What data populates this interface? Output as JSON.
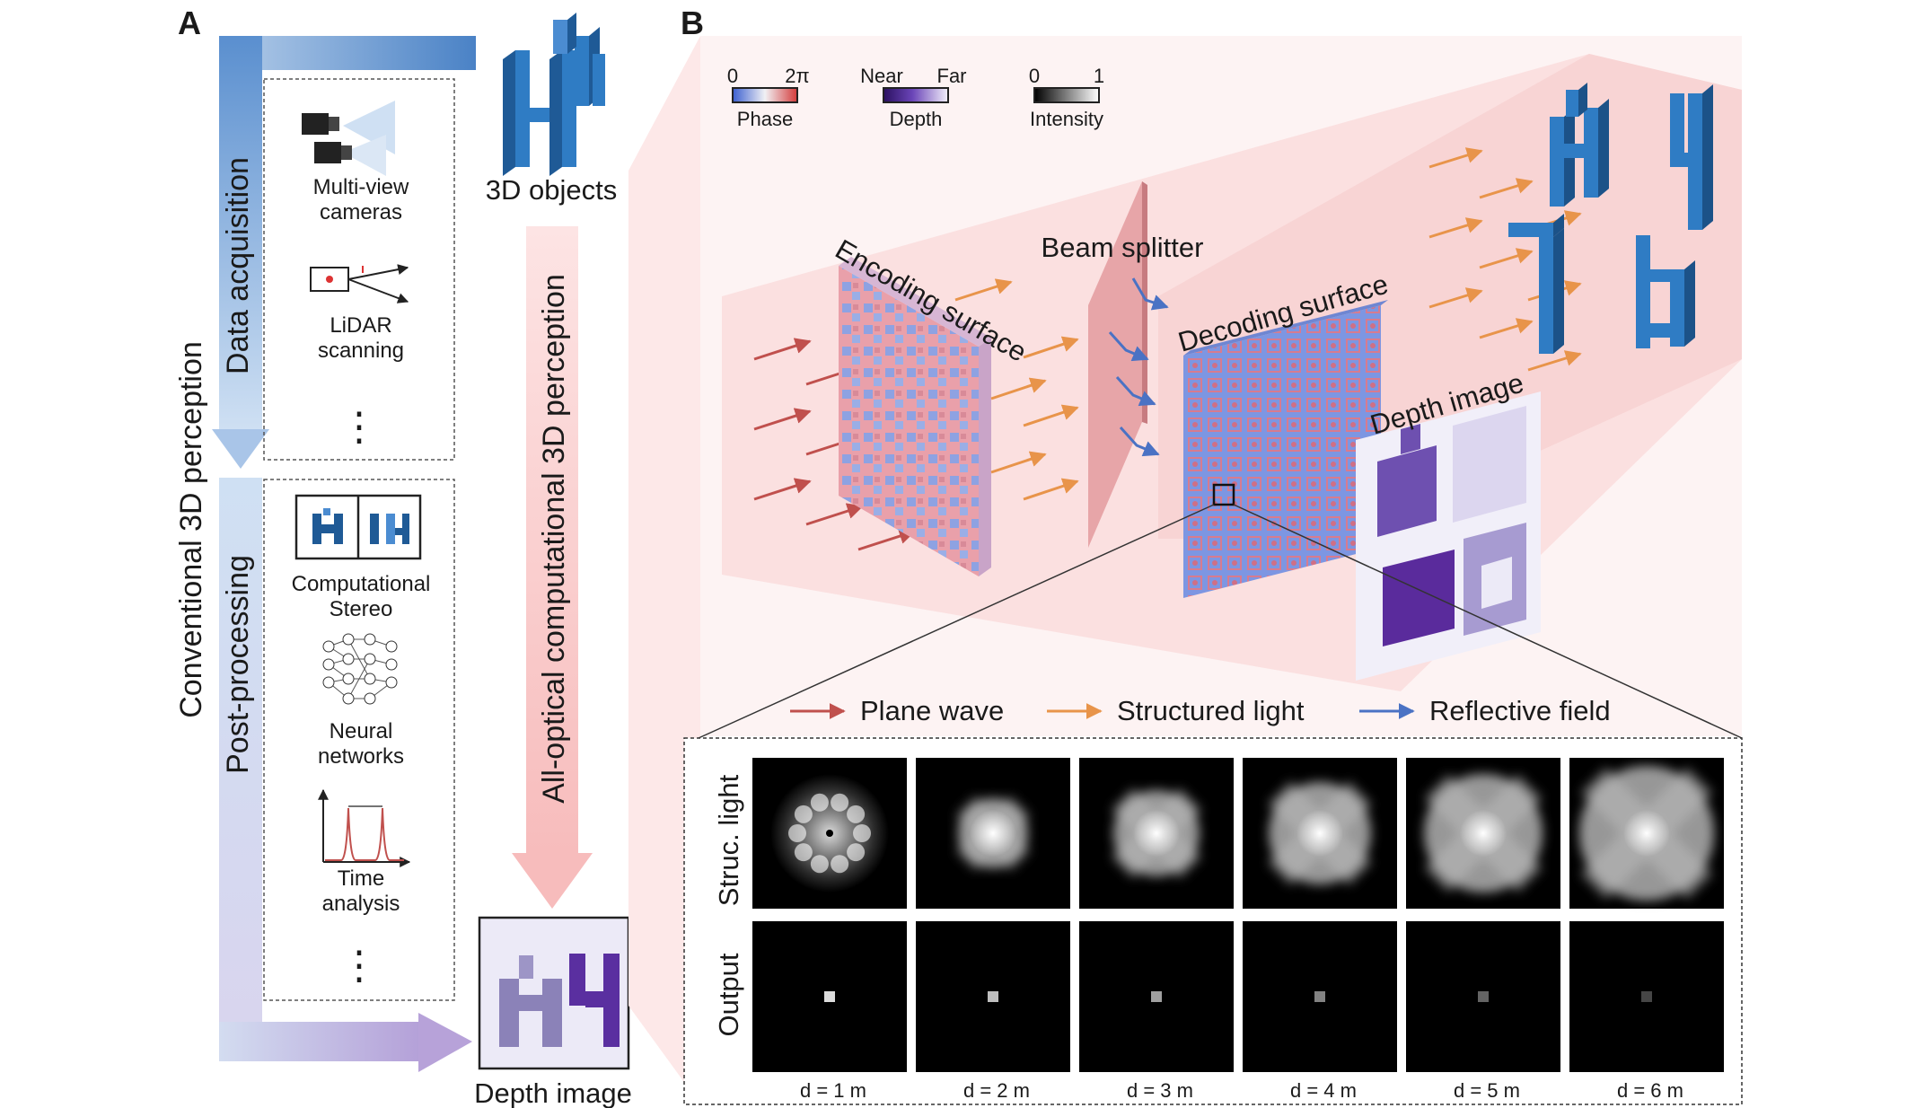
{
  "panel_a": {
    "label": "A",
    "conventional": "Conventional 3D perception",
    "data_acquisition": "Data acquisition",
    "post_processing": "Post-processing",
    "all_optical": "All-optical computational 3D perception",
    "objects": "3D objects",
    "depth_image": "Depth image",
    "multi_view": [
      "Multi-view",
      "cameras"
    ],
    "lidar": [
      "LiDAR",
      "scanning"
    ],
    "stereo": [
      "Computational",
      "Stereo"
    ],
    "neural": [
      "Neural",
      "networks"
    ],
    "time": [
      "Time",
      "analysis"
    ],
    "ellipsis": "⋮"
  },
  "panel_b": {
    "label": "B",
    "scales": {
      "phase": {
        "min": "0",
        "max": "2π",
        "name": "Phase"
      },
      "depth": {
        "min": "Near",
        "max": "Far",
        "name": "Depth"
      },
      "intensity": {
        "min": "0",
        "max": "1",
        "name": "Intensity"
      }
    },
    "encoding": "Encoding surface",
    "decoding": "Decoding surface",
    "splitter": "Beam splitter",
    "depth_img": "Depth image",
    "legend": {
      "plane": "Plane wave",
      "structured": "Structured light",
      "reflective": "Reflective field"
    },
    "rows": {
      "struc": "Struc. light",
      "output": "Output"
    },
    "distances": [
      "d = 1 m",
      "d = 2 m",
      "d = 3 m",
      "d = 4 m",
      "d = 5 m",
      "d = 6 m"
    ]
  },
  "colors": {
    "plane_wave": "#c0504d",
    "structured": "#e8944a",
    "reflective": "#4a72c4",
    "object_blue": "#2b6ea6",
    "depth_purple": "#6a3fa0"
  }
}
